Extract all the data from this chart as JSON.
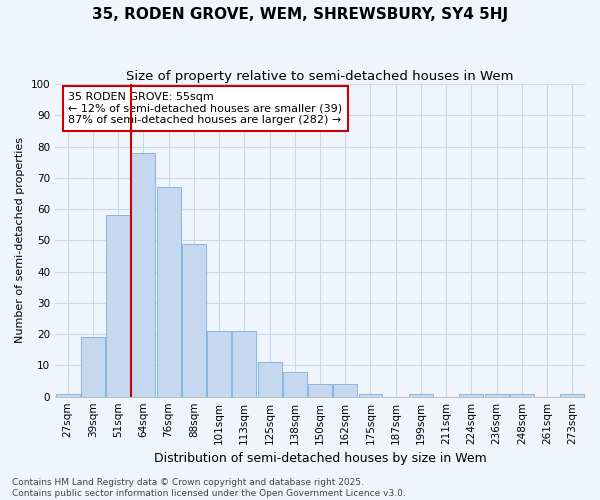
{
  "title": "35, RODEN GROVE, WEM, SHREWSBURY, SY4 5HJ",
  "subtitle": "Size of property relative to semi-detached houses in Wem",
  "xlabel": "Distribution of semi-detached houses by size in Wem",
  "ylabel": "Number of semi-detached properties",
  "categories": [
    "27sqm",
    "39sqm",
    "51sqm",
    "64sqm",
    "76sqm",
    "88sqm",
    "101sqm",
    "113sqm",
    "125sqm",
    "138sqm",
    "150sqm",
    "162sqm",
    "175sqm",
    "187sqm",
    "199sqm",
    "211sqm",
    "224sqm",
    "236sqm",
    "248sqm",
    "261sqm",
    "273sqm"
  ],
  "values": [
    1,
    19,
    58,
    78,
    67,
    49,
    21,
    21,
    11,
    8,
    4,
    4,
    1,
    0,
    1,
    0,
    1,
    1,
    1,
    0,
    1
  ],
  "bar_color": "#c5d8f0",
  "bar_edge_color": "#7aafdc",
  "background_color": "#f0f4fc",
  "grid_color": "#c8d8f0",
  "vline_index": 2,
  "vline_color": "#cc0000",
  "annotation_title": "35 RODEN GROVE: 55sqm",
  "annotation_line1": "← 12% of semi-detached houses are smaller (39)",
  "annotation_line2": "87% of semi-detached houses are larger (282) →",
  "annotation_box_facecolor": "#ffffff",
  "annotation_box_edgecolor": "#cc0000",
  "ylim": [
    0,
    100
  ],
  "yticks": [
    0,
    10,
    20,
    30,
    40,
    50,
    60,
    70,
    80,
    90,
    100
  ],
  "footer_line1": "Contains HM Land Registry data © Crown copyright and database right 2025.",
  "footer_line2": "Contains public sector information licensed under the Open Government Licence v3.0.",
  "title_fontsize": 11,
  "subtitle_fontsize": 9.5,
  "tick_fontsize": 7.5,
  "ylabel_fontsize": 8,
  "xlabel_fontsize": 9,
  "annotation_fontsize": 8,
  "footer_fontsize": 6.5
}
